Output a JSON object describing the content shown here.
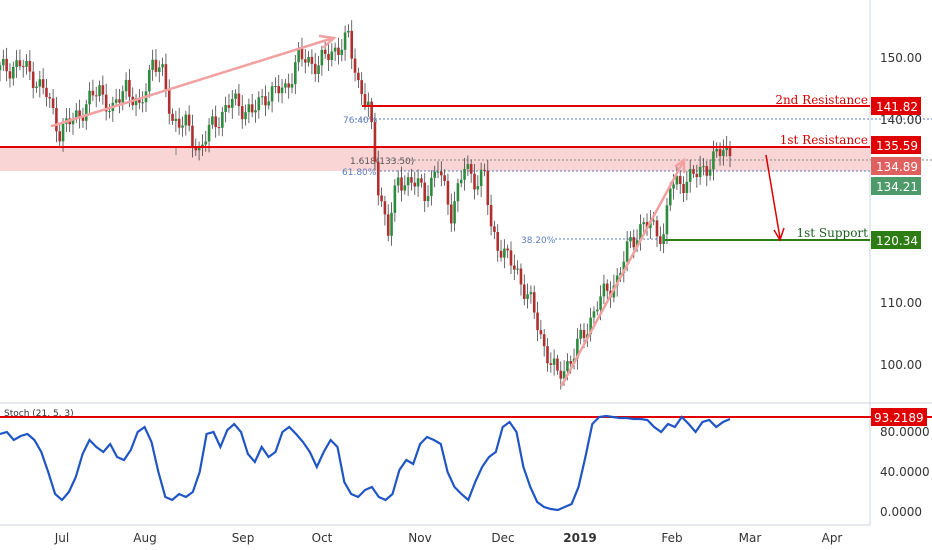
{
  "chart_data": [
    {
      "type": "candlestick",
      "title": "",
      "x_ticks": [
        "Jul",
        "Aug",
        "Sep",
        "Oct",
        "Nov",
        "Dec",
        "2019",
        "Feb",
        "Mar",
        "Apr"
      ],
      "y_ticks": [
        "150.00",
        "140.00",
        "120.00",
        "110.00",
        "100.00"
      ],
      "ylim": [
        95,
        160
      ],
      "levels": [
        {
          "label": "2nd Resistance",
          "value": "141.82",
          "color": "#e00000"
        },
        {
          "label": "1st Resistance",
          "value": "135.59",
          "color": "#e00000"
        },
        {
          "label": "",
          "value": "134.89",
          "color": "#e06060"
        },
        {
          "label": "",
          "value": "134.21",
          "color": "#4e9a6a"
        },
        {
          "label": "1st Support",
          "value": "120.34",
          "color": "#2e7d14"
        }
      ],
      "fib_labels": {
        "f76": "76.40%",
        "f1618": "1.618(133.50)",
        "f618": "61.80%",
        "f382": "38.20%"
      },
      "keypoints": [
        [
          0,
          148
        ],
        [
          6,
          149
        ],
        [
          10,
          147
        ],
        [
          14,
          144
        ],
        [
          18,
          138
        ],
        [
          24,
          141
        ],
        [
          30,
          145
        ],
        [
          34,
          141
        ],
        [
          38,
          146
        ],
        [
          42,
          141
        ],
        [
          46,
          150
        ],
        [
          49,
          147
        ],
        [
          52,
          140
        ],
        [
          56,
          139
        ],
        [
          60,
          135
        ],
        [
          64,
          139
        ],
        [
          70,
          143
        ],
        [
          76,
          141
        ],
        [
          80,
          144
        ],
        [
          86,
          145
        ],
        [
          90,
          150
        ],
        [
          96,
          149
        ],
        [
          100,
          151
        ],
        [
          105,
          153
        ],
        [
          108,
          146
        ],
        [
          111,
          142
        ],
        [
          114,
          129
        ],
        [
          117,
          122
        ],
        [
          120,
          130
        ],
        [
          124,
          130
        ],
        [
          128,
          128
        ],
        [
          132,
          132
        ],
        [
          136,
          125
        ],
        [
          140,
          132
        ],
        [
          144,
          130
        ],
        [
          146,
          131
        ],
        [
          148,
          122
        ],
        [
          152,
          118
        ],
        [
          156,
          115
        ],
        [
          160,
          110
        ],
        [
          164,
          103
        ],
        [
          168,
          98
        ],
        [
          172,
          101
        ],
        [
          176,
          105
        ],
        [
          180,
          110
        ],
        [
          186,
          114
        ],
        [
          190,
          120
        ],
        [
          194,
          123
        ],
        [
          198,
          122
        ],
        [
          200,
          121
        ],
        [
          202,
          129
        ],
        [
          206,
          130
        ],
        [
          210,
          131
        ],
        [
          214,
          133
        ],
        [
          218,
          135
        ]
      ],
      "x_total": 220
    },
    {
      "type": "line",
      "title": "",
      "indicator_label": "Stoch (21, 5, 3)",
      "y_ticks": [
        "80.0000",
        "40.0000",
        "0.0000"
      ],
      "ylim": [
        -5,
        105
      ],
      "current_value": "93.2189",
      "series": [
        {
          "values": [
            78,
            80,
            72,
            76,
            78,
            72,
            60,
            40,
            18,
            12,
            20,
            35,
            58,
            72,
            65,
            60,
            68,
            55,
            52,
            62,
            80,
            85,
            70,
            40,
            15,
            12,
            18,
            15,
            20,
            40,
            78,
            80,
            65,
            82,
            88,
            80,
            58,
            50,
            65,
            55,
            60,
            80,
            85,
            78,
            70,
            60,
            45,
            60,
            72,
            65,
            30,
            18,
            15,
            22,
            25,
            15,
            12,
            18,
            42,
            52,
            48,
            68,
            75,
            72,
            68,
            40,
            25,
            18,
            12,
            30,
            45,
            55,
            60,
            85,
            90,
            80,
            45,
            25,
            10,
            5,
            3,
            2,
            5,
            8,
            25,
            55,
            88,
            95,
            96,
            95,
            94,
            94,
            93,
            93,
            92,
            85,
            80,
            88,
            85,
            95,
            88,
            80,
            90,
            92,
            85,
            90,
            93
          ]
        }
      ]
    }
  ]
}
